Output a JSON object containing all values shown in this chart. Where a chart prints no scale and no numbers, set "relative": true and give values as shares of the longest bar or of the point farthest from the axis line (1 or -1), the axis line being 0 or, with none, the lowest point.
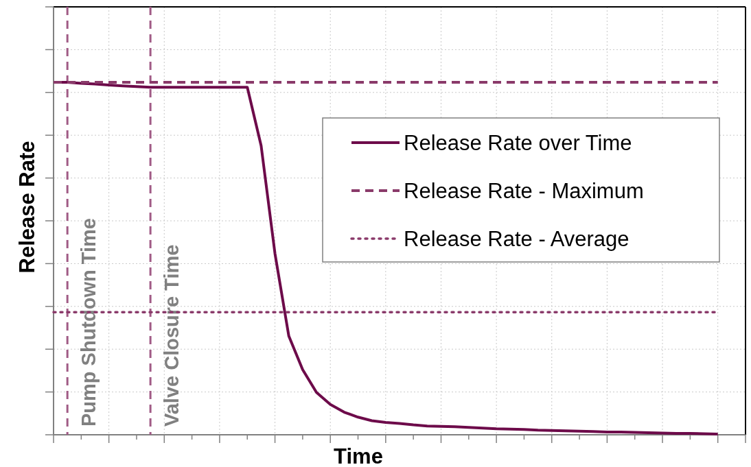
{
  "chart_data": {
    "type": "line",
    "xlabel": "Time",
    "ylabel": "Release Rate",
    "relative": true,
    "grid": true,
    "legend": "right",
    "categories": [
      null,
      null,
      null,
      null,
      null,
      null,
      null,
      null,
      null,
      null,
      null,
      null,
      null,
      null,
      null,
      null,
      null,
      null,
      null,
      null,
      null,
      null,
      null,
      null,
      null,
      null,
      null,
      null,
      null,
      null,
      null,
      null,
      null,
      null,
      null,
      null,
      null,
      null,
      null,
      null,
      null,
      null,
      null,
      null,
      null,
      null,
      null,
      null,
      null,
      null,
      null
    ],
    "series": [
      {
        "name": "Release Rate over Time",
        "color": "#6d0b4a",
        "line_style": "solid",
        "values": [
          1.0,
          1.0,
          0.997,
          0.995,
          0.992,
          0.99,
          0.988,
          0.986,
          0.986,
          0.986,
          0.986,
          0.986,
          0.986,
          0.986,
          0.986,
          0.82,
          0.514,
          0.28,
          0.185,
          0.12,
          0.086,
          0.064,
          0.05,
          0.04,
          0.035,
          0.032,
          0.028,
          0.025,
          0.024,
          0.023,
          0.021,
          0.019,
          0.017,
          0.016,
          0.015,
          0.013,
          0.012,
          0.011,
          0.01,
          0.009,
          0.008,
          0.008,
          0.007,
          0.006,
          0.005,
          0.004,
          0.004,
          0.003,
          0.002,
          null,
          null
        ]
      },
      {
        "name": "Release Rate - Maximum",
        "color": "#8a3a6a",
        "line_style": "dashed",
        "values": [
          1.0,
          1.0,
          1.0,
          1.0,
          1.0,
          1.0,
          1.0,
          1.0,
          1.0,
          1.0,
          1.0,
          1.0,
          1.0,
          1.0,
          1.0,
          1.0,
          1.0,
          1.0,
          1.0,
          1.0,
          1.0,
          1.0,
          1.0,
          1.0,
          1.0,
          1.0,
          1.0,
          1.0,
          1.0,
          1.0,
          1.0,
          1.0,
          1.0,
          1.0,
          1.0,
          1.0,
          1.0,
          1.0,
          1.0,
          1.0,
          1.0,
          1.0,
          1.0,
          1.0,
          1.0,
          1.0,
          1.0,
          1.0,
          1.0,
          null,
          null
        ]
      },
      {
        "name": "Release Rate - Average",
        "color": "#8a3a6a",
        "line_style": "dotted",
        "values": [
          0.348,
          0.348,
          0.348,
          0.348,
          0.348,
          0.348,
          0.348,
          0.348,
          0.348,
          0.348,
          0.348,
          0.348,
          0.348,
          0.348,
          0.348,
          0.348,
          0.348,
          0.348,
          0.348,
          0.348,
          0.348,
          0.348,
          0.348,
          0.348,
          0.348,
          0.348,
          0.348,
          0.348,
          0.348,
          0.348,
          0.348,
          0.348,
          0.348,
          0.348,
          0.348,
          0.348,
          0.348,
          0.348,
          0.348,
          0.348,
          0.348,
          0.348,
          0.348,
          0.348,
          0.348,
          0.348,
          0.348,
          0.348,
          0.348,
          null,
          null
        ]
      }
    ],
    "annotations": [
      "Pump Shutdown Time",
      "Valve Closure Time"
    ]
  }
}
